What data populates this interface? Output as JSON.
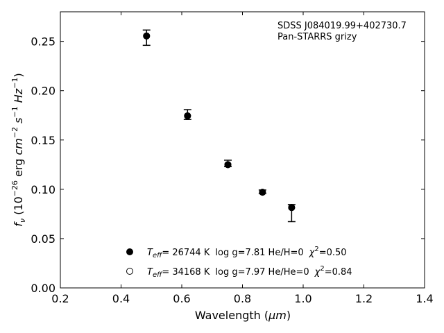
{
  "chart_data": {
    "type": "scatter",
    "xlabel_main": "Wavelength (",
    "xlabel_unit": "μm",
    "xlabel_close": ")",
    "ylabel": "f_ν (10^-26 erg cm^-2 s^-1 Hz^-1)",
    "xlim": [
      0.2,
      1.4
    ],
    "ylim": [
      0.0,
      0.28
    ],
    "xticks": [
      0.2,
      0.4,
      0.6,
      0.8,
      1.0,
      1.2,
      1.4
    ],
    "xtick_labels": [
      "0.2",
      "0.4",
      "0.6",
      "0.8",
      "1.0",
      "1.2",
      "1.4"
    ],
    "yticks": [
      0.0,
      0.05,
      0.1,
      0.15,
      0.2,
      0.25
    ],
    "ytick_labels": [
      "0.00",
      "0.05",
      "0.10",
      "0.15",
      "0.20",
      "0.25"
    ],
    "annotation": [
      "SDSS J084019.99+402730.7",
      "Pan-STARRS grizy"
    ],
    "points": [
      {
        "x": 0.484,
        "y": 0.2555,
        "err_low": 0.246,
        "err_high": 0.2615
      },
      {
        "x": 0.619,
        "y": 0.1745,
        "err_low": 0.1708,
        "err_high": 0.1808
      },
      {
        "x": 0.752,
        "y": 0.125,
        "err_low": 0.123,
        "err_high": 0.1295
      },
      {
        "x": 0.866,
        "y": 0.097,
        "err_low": 0.0958,
        "err_high": 0.0993
      },
      {
        "x": 0.962,
        "y": 0.0815,
        "err_low": 0.0672,
        "err_high": 0.0845
      }
    ],
    "model_series": [
      {
        "name": "He/H=0",
        "marker": "filled",
        "values": [
          0.2555,
          0.1745,
          0.125,
          0.097,
          0.0815
        ]
      },
      {
        "name": "He/He=0",
        "marker": "open",
        "values": [
          0.2555,
          0.1745,
          0.125,
          0.097,
          0.0815
        ]
      }
    ],
    "legend": [
      {
        "marker": "filled",
        "teff": "= 26744 K",
        "rest": "log g=7.81  He/H=0",
        "chi": "=0.50"
      },
      {
        "marker": "open",
        "teff": "= 34168 K",
        "rest": "log g=7.97  He/He=0",
        "chi": "=0.84"
      }
    ],
    "legend_placement": "bottom-left",
    "grid": false
  }
}
